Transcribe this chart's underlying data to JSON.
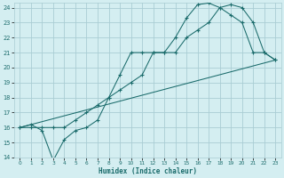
{
  "xlabel": "Humidex (Indice chaleur)",
  "bg_color": "#d4eef1",
  "grid_color": "#aacdd4",
  "line_color": "#1a6b6b",
  "xlim": [
    -0.5,
    23.5
  ],
  "ylim": [
    14,
    24.3
  ],
  "xticks": [
    0,
    1,
    2,
    3,
    4,
    5,
    6,
    7,
    8,
    9,
    10,
    11,
    12,
    13,
    14,
    15,
    16,
    17,
    18,
    19,
    20,
    21,
    22,
    23
  ],
  "yticks": [
    14,
    15,
    16,
    17,
    18,
    19,
    20,
    21,
    22,
    23,
    24
  ],
  "line1_x": [
    0,
    1,
    2,
    3,
    4,
    5,
    6,
    7,
    8,
    9,
    10,
    11,
    12,
    13,
    14,
    15,
    16,
    17,
    18,
    19,
    20,
    21,
    22,
    23
  ],
  "line1_y": [
    16,
    16,
    16,
    16,
    16,
    16.5,
    17,
    17.5,
    18,
    18.5,
    19,
    19.5,
    21,
    21,
    21,
    22,
    22.5,
    23,
    24,
    24.2,
    24,
    23,
    21,
    20.5
  ],
  "line2_x": [
    0,
    1,
    2,
    3,
    4,
    5,
    6,
    7,
    8,
    9,
    10,
    11,
    12,
    13,
    14,
    15,
    16,
    17,
    18,
    19,
    20,
    21,
    22,
    23
  ],
  "line2_y": [
    16,
    16.2,
    15.8,
    13.8,
    15.2,
    15.8,
    16,
    16.5,
    18,
    19.5,
    21,
    21,
    21,
    21,
    22,
    23.3,
    24.2,
    24.3,
    24,
    23.5,
    23,
    21,
    21,
    20.5
  ],
  "line3_x": [
    0,
    23
  ],
  "line3_y": [
    16,
    20.5
  ]
}
